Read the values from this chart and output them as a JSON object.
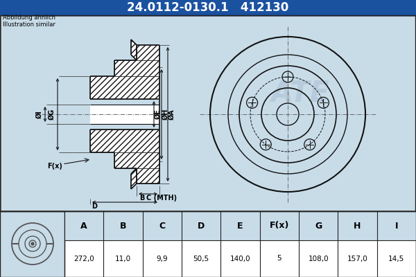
{
  "title_part": "24.0112-0130.1",
  "title_num": "412130",
  "header_bg": "#1a52a0",
  "header_text_color": "#ffffff",
  "body_bg": "#c8dce8",
  "table_bg": "#ffffff",
  "table_header_bg": "#c8dce8",
  "note_text_1": "Abbildung ähnlich",
  "note_text_2": "Illustration similar",
  "col_headers": [
    "A",
    "B",
    "C",
    "D",
    "E",
    "F(x)",
    "G",
    "H",
    "I"
  ],
  "col_values": [
    "272,0",
    "11,0",
    "9,9",
    "50,5",
    "140,0",
    "5",
    "108,0",
    "157,0",
    "14,5"
  ],
  "border_color": "#222222",
  "line_color": "#111111",
  "hatch_color": "#333333",
  "ate_watermark_color": "#b0c4d8",
  "n_bolts": 5
}
